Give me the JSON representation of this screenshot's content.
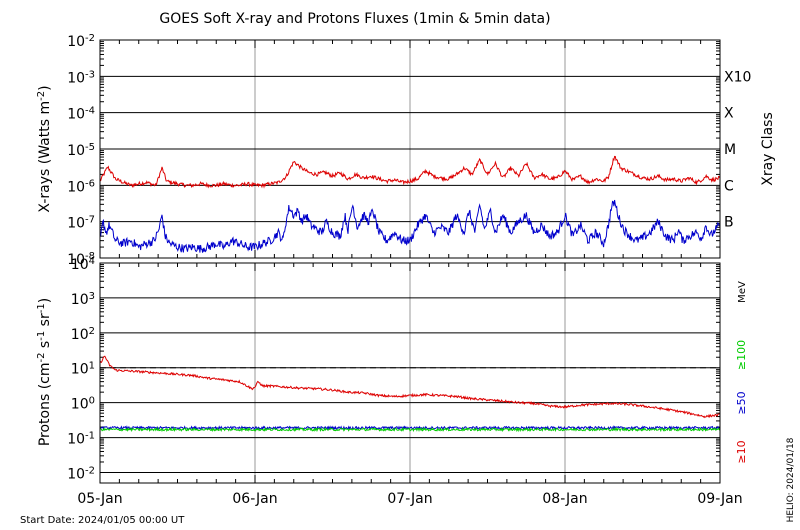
{
  "title": "GOES Soft X-ray and Protons Fluxes   (1min & 5min data)",
  "start_date": "Start Date: 2024/01/05 00:00 UT",
  "credit": "HELIO: 2024/01/18",
  "colors": {
    "xray_long": "#dd0000",
    "xray_short": "#0000cc",
    "proton_10": "#dd0000",
    "proton_50": "#0000cc",
    "proton_100": "#00cc00",
    "grid": "#000000",
    "day_line": "#999999"
  },
  "chart_data": [
    {
      "type": "line",
      "panel": "xray",
      "ylabel": "X-rays (Watts m^-2)",
      "yscale": "log",
      "ylim": [
        1e-08,
        0.01
      ],
      "x_ticks": [
        "05-Jan",
        "06-Jan",
        "07-Jan",
        "08-Jan",
        "09-Jan"
      ],
      "y_ticks": [
        {
          "base": "10",
          "exp": "-8"
        },
        {
          "base": "10",
          "exp": "-7"
        },
        {
          "base": "10",
          "exp": "-6"
        },
        {
          "base": "10",
          "exp": "-5"
        },
        {
          "base": "10",
          "exp": "-4"
        },
        {
          "base": "10",
          "exp": "-3"
        },
        {
          "base": "10",
          "exp": "-2"
        }
      ],
      "right_axis_label": "Xray Class",
      "classes": [
        {
          "name": "B",
          "value": 1e-07
        },
        {
          "name": "C",
          "value": 1e-06
        },
        {
          "name": "M",
          "value": 1e-05
        },
        {
          "name": "X",
          "value": 0.0001
        },
        {
          "name": "X10",
          "value": 0.001
        }
      ],
      "grid": true,
      "x_days": [
        0,
        4
      ],
      "series": [
        {
          "color_key": "xray_long",
          "points": [
            [
              0.0,
              1.3e-06
            ],
            [
              0.05,
              3.2e-06
            ],
            [
              0.1,
              1.5e-06
            ],
            [
              0.15,
              1.2e-06
            ],
            [
              0.2,
              1e-06
            ],
            [
              0.25,
              1.1e-06
            ],
            [
              0.3,
              1.2e-06
            ],
            [
              0.36,
              1e-06
            ],
            [
              0.4,
              3e-06
            ],
            [
              0.43,
              1.3e-06
            ],
            [
              0.5,
              1.1e-06
            ],
            [
              0.55,
              1e-06
            ],
            [
              0.6,
              1e-06
            ],
            [
              0.65,
              1.1e-06
            ],
            [
              0.7,
              1e-06
            ],
            [
              0.75,
              1e-06
            ],
            [
              0.8,
              1.1e-06
            ],
            [
              0.85,
              1e-06
            ],
            [
              0.9,
              1e-06
            ],
            [
              0.95,
              1.1e-06
            ],
            [
              1.0,
              1e-06
            ],
            [
              1.05,
              1e-06
            ],
            [
              1.1,
              1.1e-06
            ],
            [
              1.15,
              1.2e-06
            ],
            [
              1.2,
              1.7e-06
            ],
            [
              1.25,
              4.5e-06
            ],
            [
              1.3,
              3e-06
            ],
            [
              1.35,
              2.2e-06
            ],
            [
              1.4,
              2e-06
            ],
            [
              1.45,
              2.3e-06
            ],
            [
              1.5,
              1.8e-06
            ],
            [
              1.55,
              2.2e-06
            ],
            [
              1.6,
              1.5e-06
            ],
            [
              1.65,
              2e-06
            ],
            [
              1.7,
              1.6e-06
            ],
            [
              1.75,
              1.8e-06
            ],
            [
              1.8,
              1.5e-06
            ],
            [
              1.85,
              1.3e-06
            ],
            [
              1.9,
              1.4e-06
            ],
            [
              1.95,
              1.2e-06
            ],
            [
              2.0,
              1.3e-06
            ],
            [
              2.05,
              1.5e-06
            ],
            [
              2.1,
              2.5e-06
            ],
            [
              2.15,
              1.8e-06
            ],
            [
              2.2,
              1.6e-06
            ],
            [
              2.25,
              1.5e-06
            ],
            [
              2.3,
              2e-06
            ],
            [
              2.35,
              3e-06
            ],
            [
              2.4,
              2e-06
            ],
            [
              2.45,
              5e-06
            ],
            [
              2.5,
              2e-06
            ],
            [
              2.55,
              4e-06
            ],
            [
              2.6,
              1.6e-06
            ],
            [
              2.65,
              3e-06
            ],
            [
              2.7,
              1.8e-06
            ],
            [
              2.75,
              4e-06
            ],
            [
              2.8,
              1.6e-06
            ],
            [
              2.85,
              2e-06
            ],
            [
              2.9,
              1.5e-06
            ],
            [
              2.95,
              1.6e-06
            ],
            [
              3.0,
              2.5e-06
            ],
            [
              3.05,
              1.4e-06
            ],
            [
              3.1,
              1.8e-06
            ],
            [
              3.15,
              1.2e-06
            ],
            [
              3.2,
              1.5e-06
            ],
            [
              3.25,
              1.3e-06
            ],
            [
              3.28,
              1.7e-06
            ],
            [
              3.32,
              6.5e-06
            ],
            [
              3.36,
              3e-06
            ],
            [
              3.4,
              2.5e-06
            ],
            [
              3.45,
              2e-06
            ],
            [
              3.5,
              1.6e-06
            ],
            [
              3.55,
              1.5e-06
            ],
            [
              3.6,
              1.8e-06
            ],
            [
              3.65,
              1.4e-06
            ],
            [
              3.7,
              1.5e-06
            ],
            [
              3.75,
              1.3e-06
            ],
            [
              3.8,
              1.6e-06
            ],
            [
              3.85,
              1.2e-06
            ],
            [
              3.88,
              1.4e-06
            ],
            [
              3.91,
              1.8e-06
            ],
            [
              3.95,
              1.4e-06
            ],
            [
              4.0,
              1.6e-06
            ]
          ]
        },
        {
          "color_key": "xray_short",
          "points": [
            [
              0.0,
              3e-08
            ],
            [
              0.02,
              1e-07
            ],
            [
              0.04,
              5e-08
            ],
            [
              0.06,
              8e-08
            ],
            [
              0.1,
              3e-08
            ],
            [
              0.15,
              2.5e-08
            ],
            [
              0.2,
              3e-08
            ],
            [
              0.25,
              2e-08
            ],
            [
              0.3,
              2.5e-08
            ],
            [
              0.35,
              3e-08
            ],
            [
              0.38,
              6e-08
            ],
            [
              0.4,
              1.5e-07
            ],
            [
              0.42,
              4e-08
            ],
            [
              0.45,
              2.5e-08
            ],
            [
              0.5,
              2e-08
            ],
            [
              0.55,
              1.8e-08
            ],
            [
              0.6,
              2e-08
            ],
            [
              0.65,
              1.8e-08
            ],
            [
              0.7,
              2e-08
            ],
            [
              0.75,
              2.5e-08
            ],
            [
              0.8,
              2e-08
            ],
            [
              0.85,
              3e-08
            ],
            [
              0.9,
              2.5e-08
            ],
            [
              0.95,
              2e-08
            ],
            [
              1.0,
              2e-08
            ],
            [
              1.05,
              2.5e-08
            ],
            [
              1.1,
              3e-08
            ],
            [
              1.15,
              5e-08
            ],
            [
              1.18,
              3e-08
            ],
            [
              1.2,
              1e-07
            ],
            [
              1.22,
              2.5e-07
            ],
            [
              1.25,
              1.5e-07
            ],
            [
              1.28,
              2e-07
            ],
            [
              1.3,
              1e-07
            ],
            [
              1.33,
              1.5e-07
            ],
            [
              1.36,
              8e-08
            ],
            [
              1.4,
              6e-08
            ],
            [
              1.43,
              5e-08
            ],
            [
              1.46,
              1e-07
            ],
            [
              1.5,
              5e-08
            ],
            [
              1.55,
              4e-08
            ],
            [
              1.58,
              1.5e-07
            ],
            [
              1.6,
              6e-08
            ],
            [
              1.63,
              3e-07
            ],
            [
              1.66,
              7e-08
            ],
            [
              1.7,
              1.5e-07
            ],
            [
              1.73,
              1e-07
            ],
            [
              1.76,
              2e-07
            ],
            [
              1.8,
              5e-08
            ],
            [
              1.85,
              3e-08
            ],
            [
              1.9,
              5e-08
            ],
            [
              1.95,
              3e-08
            ],
            [
              2.0,
              3e-08
            ],
            [
              2.05,
              8e-08
            ],
            [
              2.1,
              1.5e-07
            ],
            [
              2.15,
              5e-08
            ],
            [
              2.2,
              7e-08
            ],
            [
              2.25,
              5e-08
            ],
            [
              2.3,
              1.5e-07
            ],
            [
              2.35,
              5e-08
            ],
            [
              2.38,
              2e-07
            ],
            [
              2.42,
              5e-08
            ],
            [
              2.45,
              3e-07
            ],
            [
              2.48,
              6e-08
            ],
            [
              2.52,
              2e-07
            ],
            [
              2.55,
              5e-08
            ],
            [
              2.6,
              1.5e-07
            ],
            [
              2.65,
              5e-08
            ],
            [
              2.7,
              1e-07
            ],
            [
              2.75,
              1.5e-07
            ],
            [
              2.8,
              5e-08
            ],
            [
              2.85,
              8e-08
            ],
            [
              2.9,
              4e-08
            ],
            [
              2.95,
              5e-08
            ],
            [
              3.0,
              1.5e-07
            ],
            [
              3.05,
              4e-08
            ],
            [
              3.1,
              8e-08
            ],
            [
              3.15,
              3e-08
            ],
            [
              3.2,
              5e-08
            ],
            [
              3.25,
              2.5e-08
            ],
            [
              3.28,
              8e-08
            ],
            [
              3.3,
              2.5e-07
            ],
            [
              3.32,
              3.5e-07
            ],
            [
              3.35,
              1.2e-07
            ],
            [
              3.38,
              6e-08
            ],
            [
              3.42,
              4e-08
            ],
            [
              3.46,
              3e-08
            ],
            [
              3.5,
              3.5e-08
            ],
            [
              3.55,
              5e-08
            ],
            [
              3.6,
              1e-07
            ],
            [
              3.65,
              4e-08
            ],
            [
              3.7,
              3e-08
            ],
            [
              3.73,
              6e-08
            ],
            [
              3.76,
              3e-08
            ],
            [
              3.8,
              4e-08
            ],
            [
              3.85,
              5e-08
            ],
            [
              3.88,
              3.5e-08
            ],
            [
              3.91,
              8e-08
            ],
            [
              3.94,
              4e-08
            ],
            [
              3.97,
              6e-08
            ],
            [
              4.0,
              8e-08
            ]
          ]
        }
      ]
    },
    {
      "type": "line",
      "panel": "protons",
      "ylabel": "Protons (cm^-2 s^-1 sr^-1)",
      "yscale": "log",
      "ylim": [
        0.005,
        10000
      ],
      "x_ticks": [
        "05-Jan",
        "06-Jan",
        "07-Jan",
        "08-Jan",
        "09-Jan"
      ],
      "y_ticks": [
        {
          "base": "10",
          "exp": "-2",
          "value": 0.01
        },
        {
          "base": "10",
          "exp": "-1",
          "value": 0.1
        },
        {
          "base": "10",
          "exp": "0",
          "value": 1
        },
        {
          "base": "10",
          "exp": "1",
          "value": 10
        },
        {
          "base": "10",
          "exp": "2",
          "value": 100
        },
        {
          "base": "10",
          "exp": "3",
          "value": 1000
        },
        {
          "base": "10",
          "exp": "4",
          "value": 10000
        }
      ],
      "threshold": 10,
      "grid": true,
      "unit_label": "MeV",
      "x_days": [
        0,
        4
      ],
      "series": [
        {
          "name": "≥10",
          "color_key": "proton_10",
          "points": [
            [
              0.0,
              13
            ],
            [
              0.03,
              22
            ],
            [
              0.06,
              12
            ],
            [
              0.1,
              8.5
            ],
            [
              0.2,
              8.0
            ],
            [
              0.3,
              7.5
            ],
            [
              0.4,
              7.0
            ],
            [
              0.5,
              6.5
            ],
            [
              0.6,
              6.0
            ],
            [
              0.7,
              5.0
            ],
            [
              0.8,
              4.5
            ],
            [
              0.9,
              4.0
            ],
            [
              0.95,
              3.0
            ],
            [
              0.98,
              2.5
            ],
            [
              1.0,
              2.8
            ],
            [
              1.02,
              4.0
            ],
            [
              1.05,
              3.0
            ],
            [
              1.1,
              3.0
            ],
            [
              1.2,
              2.8
            ],
            [
              1.3,
              2.6
            ],
            [
              1.4,
              2.5
            ],
            [
              1.5,
              2.3
            ],
            [
              1.6,
              2.0
            ],
            [
              1.7,
              1.9
            ],
            [
              1.8,
              1.6
            ],
            [
              1.9,
              1.5
            ],
            [
              2.0,
              1.6
            ],
            [
              2.1,
              1.7
            ],
            [
              2.2,
              1.6
            ],
            [
              2.3,
              1.5
            ],
            [
              2.4,
              1.3
            ],
            [
              2.5,
              1.2
            ],
            [
              2.6,
              1.1
            ],
            [
              2.7,
              1.0
            ],
            [
              2.8,
              0.95
            ],
            [
              2.9,
              0.8
            ],
            [
              3.0,
              0.75
            ],
            [
              3.1,
              0.85
            ],
            [
              3.2,
              0.9
            ],
            [
              3.3,
              0.95
            ],
            [
              3.4,
              0.9
            ],
            [
              3.5,
              0.8
            ],
            [
              3.6,
              0.7
            ],
            [
              3.7,
              0.6
            ],
            [
              3.8,
              0.5
            ],
            [
              3.9,
              0.4
            ],
            [
              4.0,
              0.45
            ]
          ]
        },
        {
          "name": "≥50",
          "color_key": "proton_50",
          "points": [
            [
              0.0,
              0.19
            ],
            [
              1.0,
              0.19
            ],
            [
              2.0,
              0.19
            ],
            [
              3.0,
              0.19
            ],
            [
              4.0,
              0.19
            ]
          ]
        },
        {
          "name": "≥100",
          "color_key": "proton_100",
          "points": [
            [
              0.0,
              0.17
            ],
            [
              1.0,
              0.17
            ],
            [
              2.0,
              0.17
            ],
            [
              3.0,
              0.17
            ],
            [
              4.0,
              0.17
            ]
          ]
        }
      ]
    }
  ]
}
